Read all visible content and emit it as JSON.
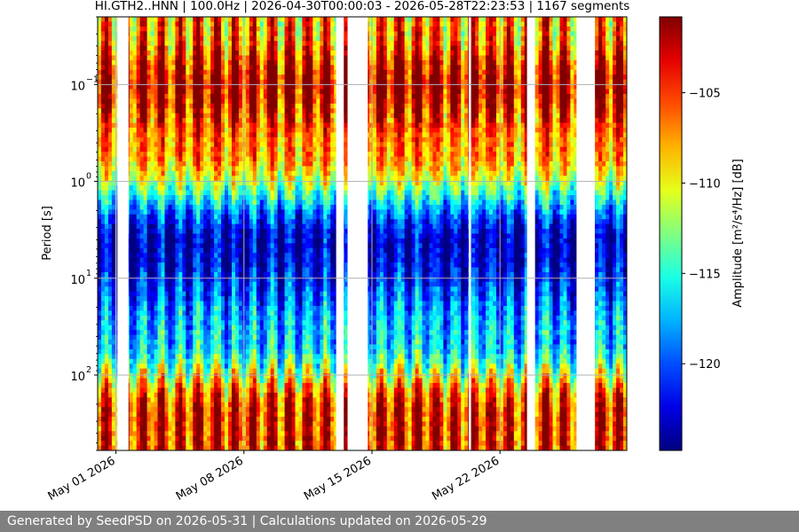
{
  "chart_data": {
    "type": "heatmap",
    "title": "HI.GTH2..HNN | 100.0Hz | 2026-04-30T00:00:03 - 2026-05-28T22:23:53 | 1167 segments",
    "ylabel": "Period [s]",
    "y_scale": "log",
    "y_inverted": true,
    "y_range": [
      0.02,
      600
    ],
    "x_range": [
      "2026-04-30T00:00:03",
      "2026-05-28T22:23:53"
    ],
    "x_ticks": [
      {
        "date": "2026-05-01",
        "label": "May 01 2026"
      },
      {
        "date": "2026-05-08",
        "label": "May 08 2026"
      },
      {
        "date": "2026-05-15",
        "label": "May 15 2026"
      },
      {
        "date": "2026-05-22",
        "label": "May 22 2026"
      }
    ],
    "y_ticks": [
      {
        "value": 0.1,
        "base": "10",
        "exp": "−1"
      },
      {
        "value": 1,
        "base": "10",
        "exp": "0"
      },
      {
        "value": 10,
        "base": "10",
        "exp": "1"
      },
      {
        "value": 100,
        "base": "10",
        "exp": "2"
      }
    ],
    "grid": true,
    "colormap": "jet",
    "colorbar": {
      "label": "Amplitude [m²/s⁴/Hz] [dB]",
      "range": [
        -124.8,
        -100.8
      ],
      "ticks": [
        -105,
        -110,
        -115,
        -120
      ],
      "tick_labels": [
        "−105",
        "−110",
        "−115",
        "−120"
      ]
    },
    "data_gaps": [
      [
        "2026-04-30T23:15:00",
        "2026-05-01T00:45:00"
      ],
      [
        "2026-05-01T02:00:00",
        "2026-05-01T16:30:00"
      ],
      [
        "2026-05-13T01:00:00",
        "2026-05-13T11:00:00"
      ],
      [
        "2026-05-13T16:00:00",
        "2026-05-14T18:30:00"
      ],
      [
        "2026-05-20T07:00:00",
        "2026-05-20T10:00:00"
      ],
      [
        "2026-05-23T11:30:00",
        "2026-05-23T22:00:00"
      ],
      [
        "2026-05-26T04:30:00",
        "2026-05-27T04:30:00"
      ]
    ],
    "spectral_bands": [
      {
        "period_range": [
          0.02,
          0.04
        ],
        "level_db": -107
      },
      {
        "period_range": [
          0.05,
          0.2
        ],
        "level_db": -102
      },
      {
        "period_range": [
          0.3,
          0.7
        ],
        "level_db": -107
      },
      {
        "period_range": [
          1,
          20
        ],
        "level_db": -123
      },
      {
        "period_range": [
          30,
          60
        ],
        "level_db": -117
      },
      {
        "period_range": [
          100,
          600
        ],
        "level_db": -104
      }
    ],
    "diurnal_cycle": true
  },
  "footer": {
    "text": "Generated by SeedPSD on 2026-05-31 | Calculations updated on 2026-05-29"
  }
}
